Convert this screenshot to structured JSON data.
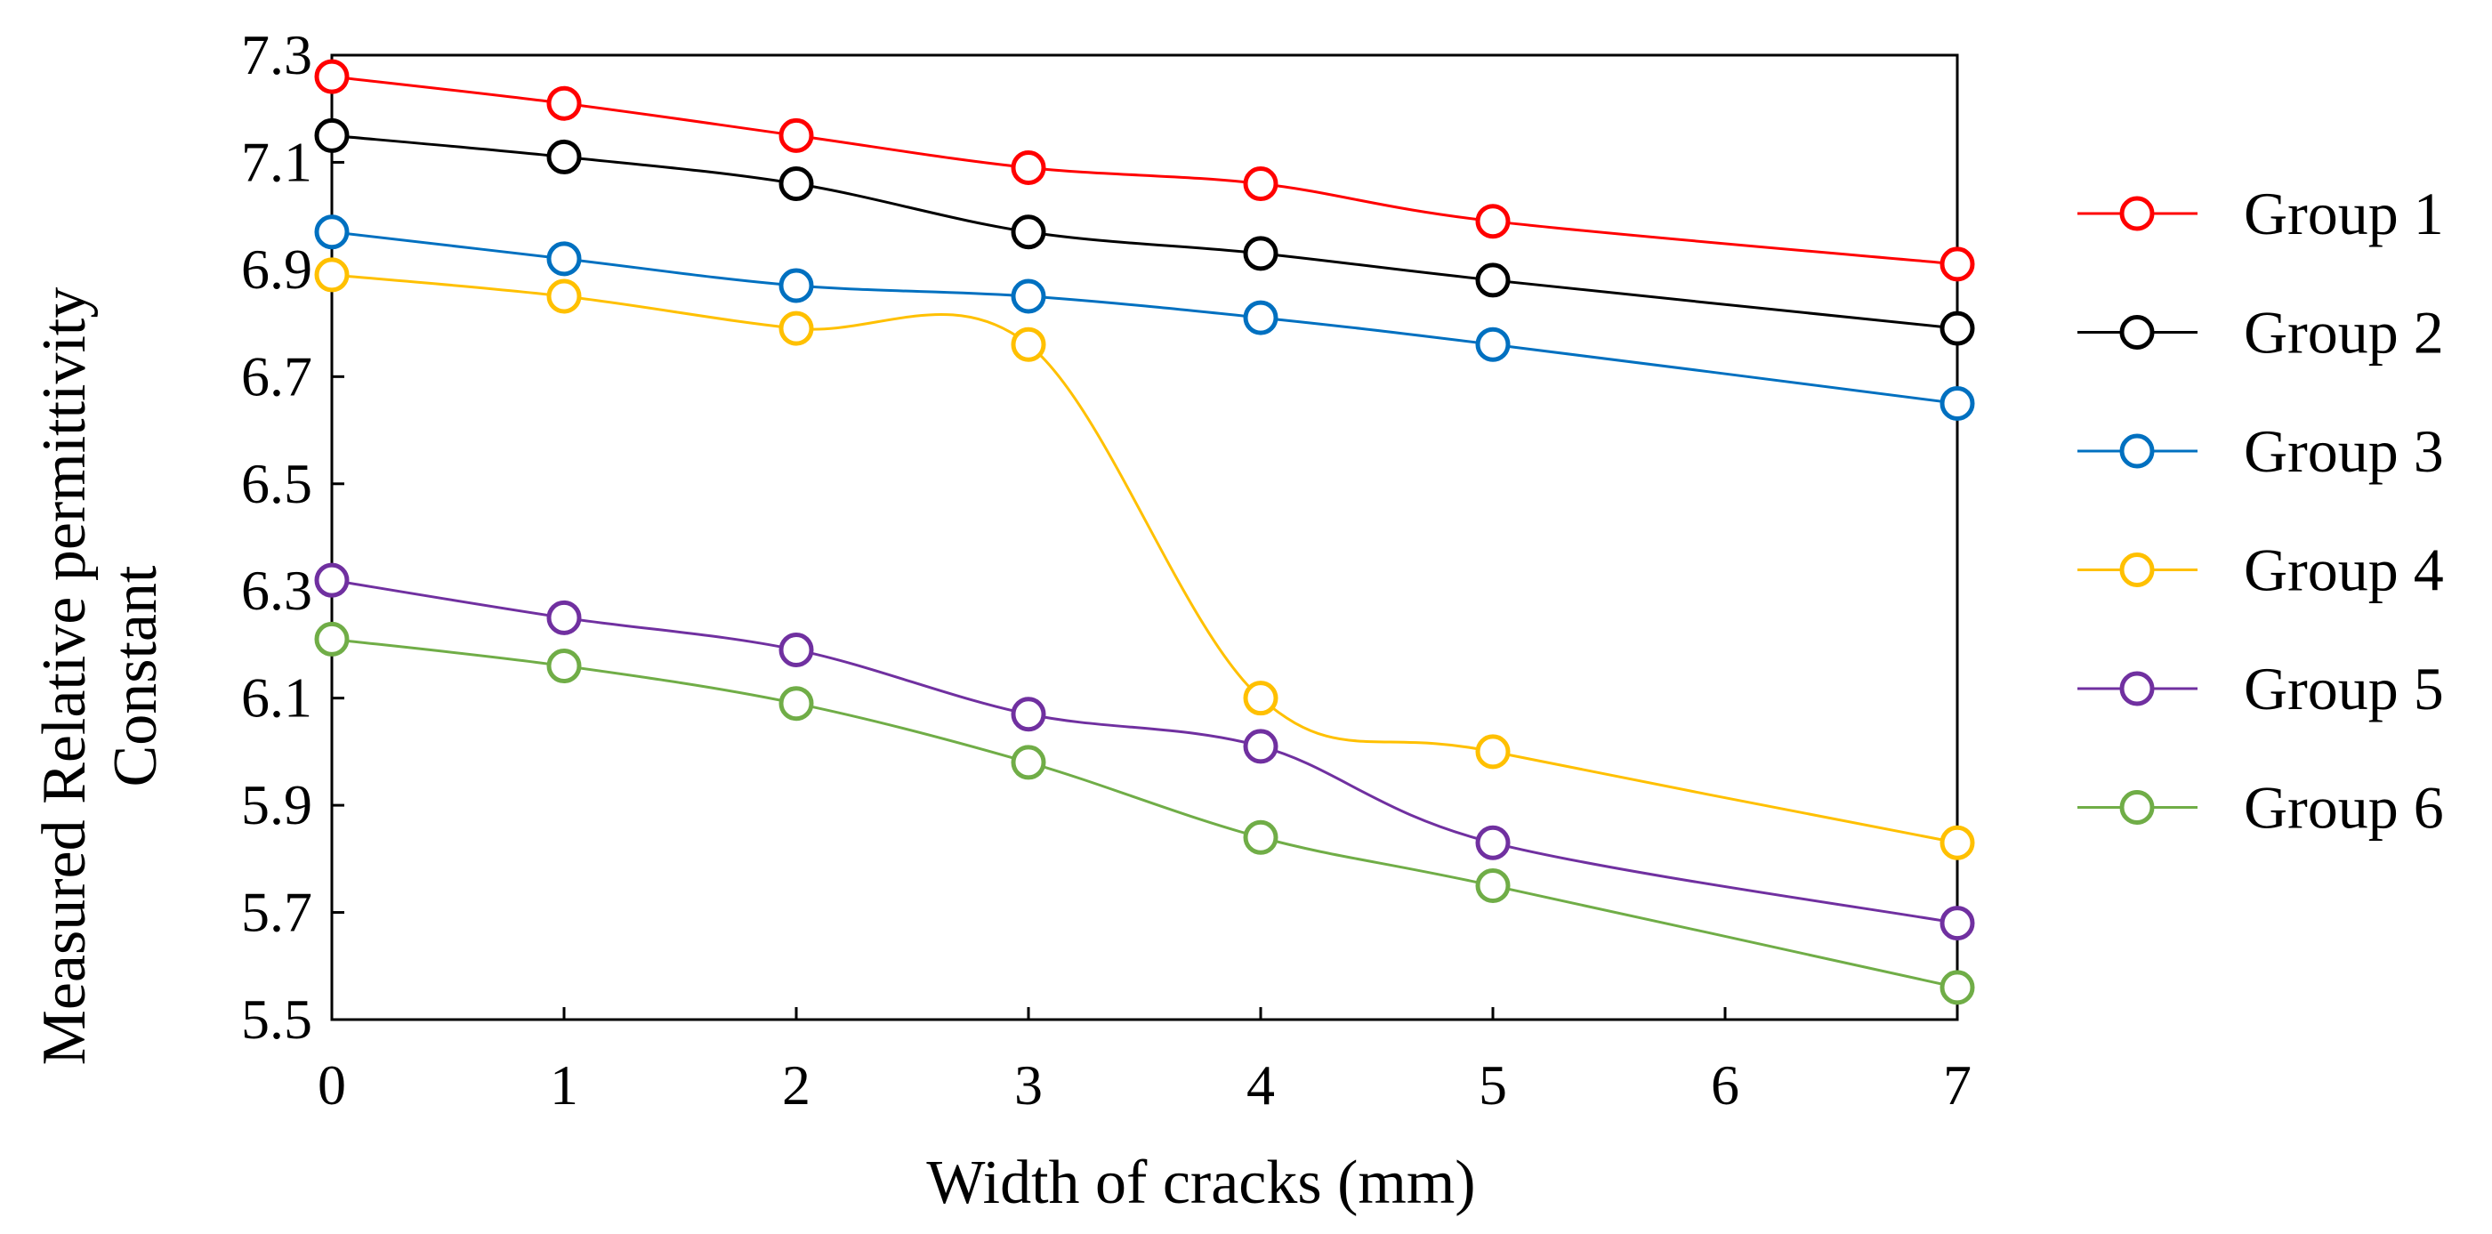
{
  "chart_data": {
    "type": "line",
    "title": "",
    "xlabel": "Width of cracks (mm)",
    "ylabel_lines": [
      "Measured Relative permittivity",
      "Constant"
    ],
    "x": [
      0,
      1,
      2,
      3,
      4,
      5,
      7
    ],
    "xlim": [
      0,
      7
    ],
    "ylim": [
      5.5,
      7.3
    ],
    "x_ticks": [
      "0",
      "1",
      "2",
      "3",
      "4",
      "5",
      "6",
      "7"
    ],
    "y_ticks": [
      "5.5",
      "5.7",
      "5.9",
      "6.1",
      "6.3",
      "6.5",
      "6.7",
      "6.9",
      "7.1",
      "7.3"
    ],
    "grid": false,
    "legend_position": "right",
    "marker": "open-circle",
    "series": [
      {
        "name": "Group 1",
        "color": "#ff0000",
        "values": [
          7.26,
          7.21,
          7.15,
          7.09,
          7.06,
          6.99,
          6.91
        ]
      },
      {
        "name": "Group 2",
        "color": "#000000",
        "values": [
          7.15,
          7.11,
          7.06,
          6.97,
          6.93,
          6.88,
          6.79
        ]
      },
      {
        "name": "Group 3",
        "color": "#0070c0",
        "values": [
          6.97,
          6.92,
          6.87,
          6.85,
          6.81,
          6.76,
          6.65
        ]
      },
      {
        "name": "Group 4",
        "color": "#ffc000",
        "values": [
          6.89,
          6.85,
          6.79,
          6.76,
          6.1,
          6.0,
          5.83
        ]
      },
      {
        "name": "Group 5",
        "color": "#7030a0",
        "values": [
          6.32,
          6.25,
          6.19,
          6.07,
          6.01,
          5.83,
          5.68
        ]
      },
      {
        "name": "Group 6",
        "color": "#70ad47",
        "values": [
          6.21,
          6.16,
          6.09,
          5.98,
          5.84,
          5.75,
          5.56
        ]
      }
    ]
  }
}
